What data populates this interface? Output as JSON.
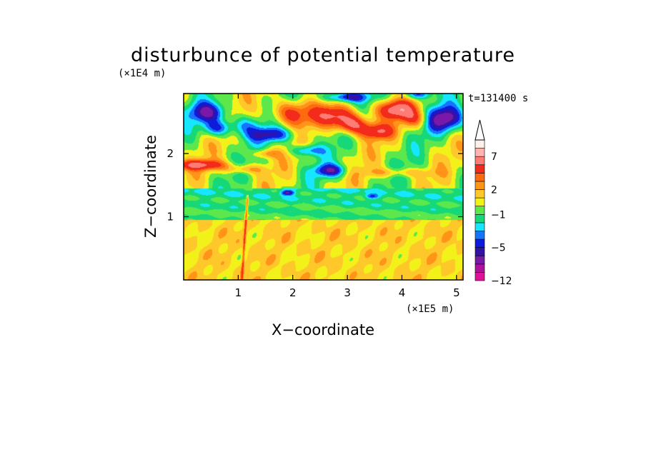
{
  "chart_data": {
    "type": "heatmap",
    "title": "disturbunce of potential temperature",
    "time_label": "t=131400 s",
    "xlabel": "X−coordinate",
    "ylabel": "Z−coordinate",
    "x_unit": "(×1E5 m)",
    "y_unit": "(×1E4 m)",
    "x_ticks": [
      "1",
      "2",
      "3",
      "4",
      "5"
    ],
    "y_ticks": [
      "1",
      "2"
    ],
    "xlim": [
      0,
      5.12
    ],
    "ylim": [
      0,
      2.95
    ],
    "colorbar": {
      "levels": [
        -12,
        -9,
        -7,
        -5,
        -4,
        -3,
        -2,
        -1,
        0,
        1,
        2,
        3,
        4,
        5,
        7,
        9,
        11
      ],
      "colors": [
        "#e0109a",
        "#b0109e",
        "#7a18a8",
        "#3412a8",
        "#0c1cd8",
        "#1674ff",
        "#16e6ff",
        "#16d878",
        "#5ce84c",
        "#f2f21a",
        "#ffc82a",
        "#ff9418",
        "#ff6a10",
        "#f22b1a",
        "#ff7c76",
        "#ffb4b2",
        "#fff0ea"
      ],
      "tick_labels": [
        "7",
        "2",
        "−1",
        "−5",
        "−12"
      ],
      "extend": "max"
    }
  }
}
